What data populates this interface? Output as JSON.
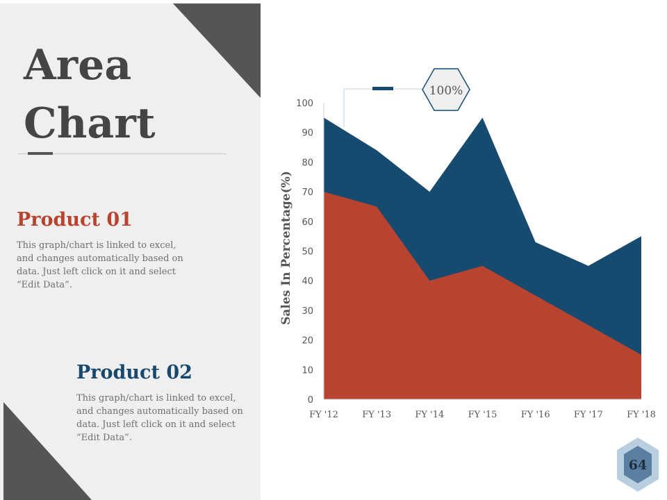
{
  "slide": {
    "title_line1": "Area",
    "title_line2": "Chart",
    "page_number": "64"
  },
  "products": [
    {
      "title": "Product 01",
      "description": "This graph/chart is linked to excel, and changes automatically based on data. Just left click on it and select “Edit Data”."
    },
    {
      "title": "Product 02",
      "description": "This graph/chart is linked to excel, and changes automatically based on data. Just left click on it and select “Edit Data”."
    }
  ],
  "colors": {
    "product_01": "#b8432f",
    "product_02": "#164a6e",
    "dark_gray": "#555555",
    "panel": "#efefef"
  },
  "chart_data": {
    "type": "area",
    "title": "",
    "xlabel": "",
    "ylabel": "Sales In Percentage(%)",
    "categories": [
      "FY '12",
      "FY '13",
      "FY '14",
      "FY '15",
      "FY '16",
      "FY '17",
      "FY '18"
    ],
    "ylim": [
      0,
      100
    ],
    "yticks": [
      0,
      10,
      20,
      30,
      40,
      50,
      60,
      70,
      80,
      90,
      100
    ],
    "series": [
      {
        "name": "Product 01",
        "values": [
          70,
          65,
          40,
          45,
          35,
          25,
          15
        ]
      },
      {
        "name": "Product 02",
        "values": [
          95,
          84,
          70,
          95,
          53,
          45,
          55
        ]
      }
    ],
    "annotation": "100%",
    "grid": false
  }
}
